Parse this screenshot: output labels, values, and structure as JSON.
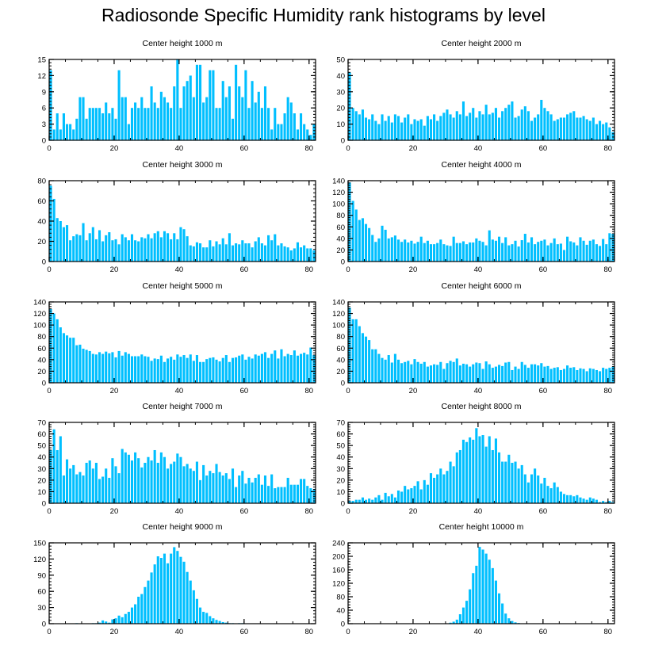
{
  "figure": {
    "title": "Radiosonde Specific Humidity rank histograms by level",
    "bar_color": "#00BFFF",
    "frame_color": "#000000"
  },
  "chart_data": [
    {
      "type": "bar",
      "title": "Center height 1000 m",
      "xlim": [
        0,
        82
      ],
      "ylim": [
        0,
        15
      ],
      "xticks": [
        0,
        20,
        40,
        60,
        80
      ],
      "yticks": [
        0,
        3,
        6,
        9,
        12,
        15
      ],
      "values": [
        13,
        2,
        5,
        2,
        5,
        3,
        3,
        2,
        4,
        8,
        8,
        4,
        6,
        6,
        6,
        6,
        5,
        7,
        5,
        6,
        4,
        13,
        8,
        8,
        3,
        6,
        7,
        6,
        8,
        6,
        6,
        10,
        7,
        6,
        9,
        8,
        7,
        6,
        10,
        15,
        6,
        10,
        11,
        12,
        8,
        14,
        14,
        7,
        8,
        13,
        13,
        6,
        6,
        11,
        8,
        10,
        4,
        14,
        10,
        8,
        13,
        6,
        11,
        7,
        9,
        6,
        10,
        6,
        2,
        6,
        3,
        3,
        5,
        8,
        7,
        5,
        2,
        5,
        3,
        2,
        1,
        3
      ]
    },
    {
      "type": "bar",
      "title": "Center height 2000 m",
      "xlim": [
        0,
        82
      ],
      "ylim": [
        0,
        50
      ],
      "xticks": [
        0,
        20,
        40,
        60,
        80
      ],
      "yticks": [
        0,
        10,
        20,
        30,
        40,
        50
      ],
      "values": [
        42,
        20,
        18,
        16,
        19,
        14,
        13,
        16,
        12,
        10,
        16,
        12,
        15,
        11,
        16,
        15,
        11,
        14,
        16,
        10,
        13,
        12,
        13,
        9,
        15,
        13,
        16,
        12,
        15,
        17,
        19,
        16,
        14,
        18,
        16,
        24,
        15,
        17,
        20,
        14,
        18,
        16,
        22,
        16,
        17,
        20,
        14,
        18,
        20,
        22,
        24,
        14,
        15,
        19,
        21,
        18,
        12,
        14,
        16,
        25,
        20,
        18,
        16,
        12,
        13,
        14,
        14,
        16,
        17,
        18,
        14,
        14,
        15,
        13,
        12,
        14,
        10,
        12,
        10,
        11,
        8,
        5
      ]
    },
    {
      "type": "bar",
      "title": "Center height 3000 m",
      "xlim": [
        0,
        82
      ],
      "ylim": [
        0,
        80
      ],
      "xticks": [
        0,
        20,
        40,
        60,
        80
      ],
      "yticks": [
        0,
        20,
        40,
        60,
        80
      ],
      "values": [
        75,
        62,
        43,
        40,
        34,
        36,
        21,
        25,
        27,
        26,
        38,
        21,
        28,
        34,
        22,
        31,
        20,
        26,
        29,
        21,
        22,
        17,
        27,
        24,
        21,
        27,
        21,
        20,
        24,
        23,
        27,
        23,
        28,
        30,
        24,
        30,
        28,
        22,
        28,
        22,
        34,
        32,
        25,
        16,
        15,
        19,
        18,
        14,
        14,
        21,
        15,
        20,
        17,
        23,
        17,
        28,
        16,
        18,
        17,
        21,
        18,
        18,
        14,
        20,
        24,
        18,
        16,
        26,
        21,
        27,
        16,
        18,
        15,
        14,
        11,
        13,
        19,
        14,
        16,
        13,
        13,
        11
      ]
    },
    {
      "type": "bar",
      "title": "Center height 4000 m",
      "xlim": [
        0,
        82
      ],
      "ylim": [
        0,
        140
      ],
      "xticks": [
        0,
        20,
        40,
        60,
        80
      ],
      "yticks": [
        0,
        20,
        40,
        60,
        80,
        100,
        120,
        140
      ],
      "values": [
        137,
        105,
        90,
        72,
        75,
        65,
        58,
        46,
        34,
        40,
        62,
        55,
        40,
        42,
        45,
        38,
        34,
        38,
        33,
        36,
        31,
        34,
        43,
        32,
        36,
        30,
        30,
        32,
        38,
        30,
        28,
        27,
        43,
        32,
        32,
        35,
        30,
        33,
        33,
        40,
        36,
        34,
        28,
        54,
        38,
        36,
        43,
        32,
        42,
        28,
        30,
        36,
        26,
        37,
        48,
        33,
        42,
        30,
        34,
        36,
        38,
        28,
        32,
        40,
        30,
        31,
        20,
        43,
        35,
        33,
        28,
        42,
        36,
        29,
        36,
        38,
        30,
        27,
        39,
        30,
        49,
        48
      ]
    },
    {
      "type": "bar",
      "title": "Center height 5000 m",
      "xlim": [
        0,
        82
      ],
      "ylim": [
        0,
        140
      ],
      "xticks": [
        0,
        20,
        40,
        60,
        80
      ],
      "yticks": [
        0,
        20,
        40,
        60,
        80,
        100,
        120,
        140
      ],
      "values": [
        128,
        120,
        110,
        96,
        86,
        82,
        78,
        78,
        65,
        66,
        59,
        57,
        55,
        50,
        49,
        53,
        50,
        54,
        51,
        53,
        44,
        55,
        47,
        53,
        50,
        46,
        46,
        46,
        49,
        46,
        45,
        38,
        42,
        41,
        47,
        36,
        42,
        45,
        40,
        49,
        45,
        48,
        43,
        49,
        38,
        48,
        36,
        36,
        41,
        43,
        44,
        40,
        37,
        43,
        48,
        36,
        43,
        44,
        47,
        49,
        40,
        45,
        42,
        49,
        47,
        50,
        53,
        43,
        50,
        56,
        42,
        58,
        46,
        50,
        48,
        56,
        47,
        50,
        52,
        49,
        61,
        48
      ]
    },
    {
      "type": "bar",
      "title": "Center height 6000 m",
      "xlim": [
        0,
        82
      ],
      "ylim": [
        0,
        140
      ],
      "xticks": [
        0,
        20,
        40,
        60,
        80
      ],
      "yticks": [
        0,
        20,
        40,
        60,
        80,
        100,
        120,
        140
      ],
      "values": [
        130,
        110,
        110,
        98,
        86,
        80,
        74,
        58,
        58,
        50,
        43,
        40,
        48,
        35,
        50,
        40,
        34,
        36,
        38,
        32,
        41,
        36,
        33,
        36,
        28,
        30,
        32,
        31,
        36,
        24,
        34,
        38,
        36,
        42,
        30,
        33,
        32,
        28,
        32,
        35,
        34,
        24,
        37,
        32,
        26,
        28,
        31,
        29,
        35,
        36,
        22,
        28,
        24,
        36,
        31,
        26,
        32,
        32,
        30,
        34,
        28,
        29,
        24,
        26,
        27,
        22,
        24,
        30,
        26,
        27,
        22,
        25,
        24,
        20,
        25,
        24,
        22,
        20,
        26,
        24,
        26,
        28
      ]
    },
    {
      "type": "bar",
      "title": "Center height 7000 m",
      "xlim": [
        0,
        82
      ],
      "ylim": [
        0,
        70
      ],
      "xticks": [
        0,
        20,
        40,
        60,
        80
      ],
      "yticks": [
        0,
        10,
        20,
        30,
        40,
        50,
        60,
        70
      ],
      "values": [
        46,
        64,
        46,
        58,
        24,
        38,
        30,
        33,
        25,
        27,
        24,
        35,
        37,
        30,
        35,
        21,
        23,
        30,
        22,
        39,
        32,
        26,
        47,
        44,
        42,
        37,
        44,
        39,
        31,
        35,
        40,
        37,
        46,
        35,
        44,
        40,
        30,
        34,
        36,
        43,
        40,
        32,
        34,
        30,
        28,
        36,
        20,
        33,
        24,
        28,
        26,
        34,
        27,
        24,
        26,
        21,
        30,
        14,
        24,
        28,
        17,
        22,
        18,
        22,
        25,
        16,
        24,
        15,
        25,
        13,
        14,
        14,
        14,
        22,
        16,
        16,
        16,
        21,
        21,
        15,
        13,
        12
      ]
    },
    {
      "type": "bar",
      "title": "Center height 8000 m",
      "xlim": [
        0,
        82
      ],
      "ylim": [
        0,
        70
      ],
      "xticks": [
        0,
        20,
        40,
        60,
        80
      ],
      "yticks": [
        0,
        10,
        20,
        30,
        40,
        50,
        60,
        70
      ],
      "values": [
        2,
        2,
        3,
        3,
        5,
        3,
        4,
        3,
        5,
        7,
        3,
        9,
        6,
        8,
        5,
        11,
        10,
        15,
        12,
        13,
        15,
        19,
        12,
        20,
        16,
        26,
        22,
        25,
        30,
        25,
        28,
        36,
        32,
        44,
        46,
        55,
        53,
        57,
        55,
        65,
        58,
        59,
        49,
        58,
        46,
        56,
        44,
        36,
        36,
        42,
        35,
        36,
        30,
        33,
        25,
        18,
        25,
        30,
        24,
        17,
        22,
        15,
        13,
        18,
        14,
        10,
        8,
        7,
        7,
        6,
        7,
        5,
        4,
        3,
        5,
        4,
        3,
        1,
        2,
        1,
        2,
        1
      ]
    },
    {
      "type": "bar",
      "title": "Center height 9000 m",
      "xlim": [
        0,
        82
      ],
      "ylim": [
        0,
        150
      ],
      "xticks": [
        0,
        20,
        40,
        60,
        80
      ],
      "yticks": [
        0,
        30,
        60,
        90,
        120,
        150
      ],
      "values": [
        0,
        0,
        0,
        0,
        0,
        0,
        0,
        0,
        1,
        0,
        0,
        0,
        0,
        1,
        1,
        2,
        6,
        4,
        2,
        8,
        10,
        15,
        12,
        18,
        22,
        30,
        36,
        50,
        55,
        68,
        80,
        95,
        110,
        125,
        122,
        130,
        112,
        130,
        142,
        135,
        124,
        115,
        96,
        80,
        62,
        46,
        30,
        22,
        20,
        14,
        10,
        7,
        5,
        3,
        2,
        1,
        1,
        0,
        1,
        1,
        0,
        0,
        0,
        0,
        0,
        0,
        0,
        0,
        0,
        0,
        0,
        0,
        0,
        0,
        0,
        0,
        0,
        0,
        0,
        0,
        0,
        0
      ]
    },
    {
      "type": "bar",
      "title": "Center height 10000 m",
      "xlim": [
        0,
        82
      ],
      "ylim": [
        0,
        240
      ],
      "xticks": [
        0,
        20,
        40,
        60,
        80
      ],
      "yticks": [
        0,
        40,
        80,
        120,
        160,
        200,
        240
      ],
      "values": [
        0,
        0,
        0,
        0,
        0,
        0,
        0,
        0,
        0,
        0,
        0,
        0,
        0,
        0,
        0,
        0,
        0,
        0,
        0,
        0,
        0,
        0,
        0,
        0,
        0,
        0,
        0,
        0,
        0,
        0,
        1,
        3,
        6,
        12,
        28,
        48,
        68,
        102,
        150,
        172,
        228,
        220,
        208,
        190,
        165,
        128,
        90,
        60,
        30,
        16,
        8,
        4,
        2,
        1,
        0,
        0,
        0,
        0,
        0,
        0,
        0,
        0,
        0,
        0,
        0,
        0,
        0,
        0,
        0,
        0,
        0,
        0,
        0,
        0,
        0,
        0,
        0,
        0,
        0,
        0,
        0,
        0
      ]
    }
  ]
}
